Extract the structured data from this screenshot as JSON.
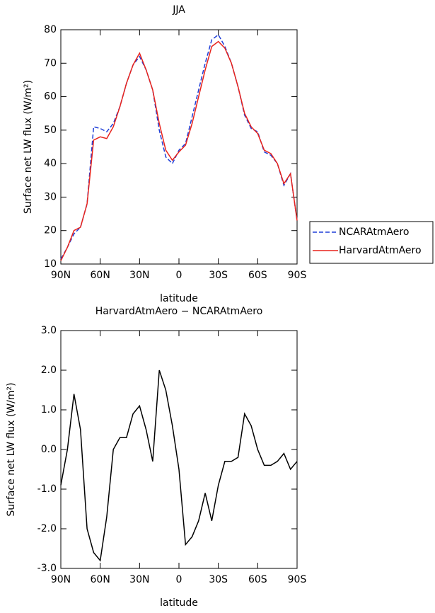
{
  "chart_data": [
    {
      "type": "line",
      "title": "JJA",
      "xlabel": "latitude",
      "ylabel": "Surface net LW flux (W/m²)",
      "x": [
        90,
        85,
        80,
        75,
        70,
        65,
        60,
        55,
        50,
        45,
        40,
        35,
        30,
        25,
        20,
        15,
        10,
        5,
        0,
        -5,
        -10,
        -15,
        -20,
        -25,
        -30,
        -35,
        -40,
        -45,
        -50,
        -55,
        -60,
        -65,
        -70,
        -75,
        -80,
        -85,
        -90
      ],
      "series": [
        {
          "name": "NCARAtmAero",
          "color": "#1f3fd8",
          "line_style": "dashed",
          "values": [
            11.5,
            15,
            19,
            21,
            28,
            51,
            50.5,
            49.5,
            52,
            57,
            64,
            69.5,
            72,
            68,
            62,
            50,
            42,
            40,
            44,
            46,
            54,
            62,
            70,
            77,
            78.5,
            75,
            70,
            63,
            54.5,
            50.5,
            49.5,
            43.5,
            42.5,
            40,
            33.5,
            37,
            23
          ]
        },
        {
          "name": "HarvardAtmAero",
          "color": "#e8231c",
          "line_style": "solid",
          "values": [
            11,
            15,
            20,
            21,
            28,
            47,
            48,
            47.5,
            51,
            57,
            64,
            69.5,
            73,
            68,
            62,
            52,
            44,
            41,
            43.5,
            45.5,
            52,
            60,
            68,
            75,
            76.5,
            74.5,
            70,
            63,
            55,
            51,
            49,
            44,
            43,
            40,
            34,
            37,
            23
          ]
        }
      ],
      "xlim": [
        90,
        -90
      ],
      "xticks": [
        {
          "value": 90,
          "label": "90N"
        },
        {
          "value": 60,
          "label": "60N"
        },
        {
          "value": 30,
          "label": "30N"
        },
        0,
        {
          "value": -30,
          "label": "30S"
        },
        {
          "value": -60,
          "label": "60S"
        },
        {
          "value": -90,
          "label": "90S"
        }
      ],
      "ylim": [
        10,
        80
      ],
      "yticks": [
        10,
        20,
        30,
        40,
        50,
        60,
        70,
        80
      ],
      "legend": "right"
    },
    {
      "type": "line",
      "title": "HarvardAtmAero − NCARAtmAero",
      "xlabel": "latitude",
      "ylabel": "Surface net LW flux (W/m²)",
      "x": [
        90,
        85,
        80,
        75,
        70,
        65,
        60,
        55,
        50,
        45,
        40,
        35,
        30,
        25,
        20,
        15,
        10,
        5,
        0,
        -5,
        -10,
        -15,
        -20,
        -25,
        -30,
        -35,
        -40,
        -45,
        -50,
        -55,
        -60,
        -65,
        -70,
        -75,
        -80,
        -85,
        -90
      ],
      "values": [
        -0.9,
        0.0,
        1.4,
        0.5,
        -2.0,
        -2.6,
        -2.8,
        -1.7,
        0.0,
        0.3,
        0.3,
        0.9,
        1.1,
        0.5,
        -0.3,
        2.0,
        1.5,
        0.6,
        -0.5,
        -2.4,
        -2.2,
        -1.8,
        -1.1,
        -1.8,
        -0.9,
        -0.3,
        -0.3,
        -0.2,
        0.9,
        0.6,
        0.0,
        -0.4,
        -0.4,
        -0.3,
        -0.1,
        -0.5,
        -0.3
      ],
      "color": "#000000",
      "xlim": [
        90,
        -90
      ],
      "xticks": [
        {
          "value": 90,
          "label": "90N"
        },
        {
          "value": 60,
          "label": "60N"
        },
        {
          "value": 30,
          "label": "30N"
        },
        0,
        {
          "value": -30,
          "label": "30S"
        },
        {
          "value": -60,
          "label": "60S"
        },
        {
          "value": -90,
          "label": "90S"
        }
      ],
      "ylim": [
        -3,
        3
      ],
      "yticks": [
        {
          "value": -3,
          "label": "-3.0"
        },
        {
          "value": -2,
          "label": "-2.0"
        },
        {
          "value": -1,
          "label": "-1.0"
        },
        {
          "value": 0,
          "label": "0.0"
        },
        {
          "value": 1,
          "label": "1.0"
        },
        {
          "value": 2,
          "label": "2.0"
        },
        {
          "value": 3,
          "label": "3.0"
        }
      ]
    }
  ]
}
